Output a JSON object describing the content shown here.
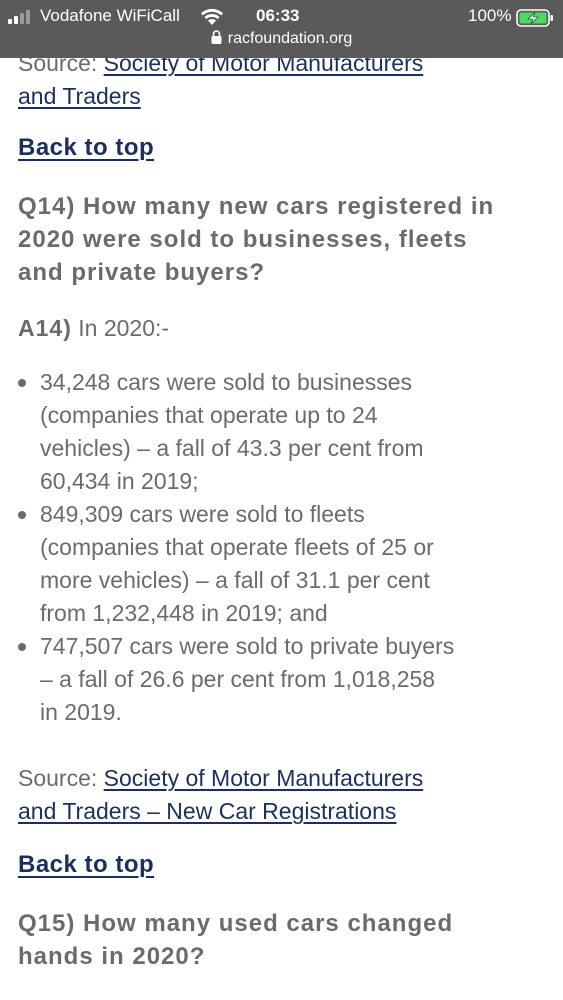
{
  "status_bar": {
    "carrier": "Vodafone WiFiCall",
    "time": "06:33",
    "battery_percent": "100%",
    "url": "racfoundation.org"
  },
  "top_source": {
    "prefix": "Source:",
    "link_line1": "Society of Motor Manufacturers",
    "link_line2": "and Traders "
  },
  "back_to_top_1": "Back to top",
  "q14": {
    "line1": "Q14) How many new cars registered in",
    "line2": "2020 were sold to businesses, fleets",
    "line3": "and private buyers?"
  },
  "a14": {
    "label": "A14)",
    "text": " In 2020:-",
    "items": [
      {
        "lines": [
          "34,248 cars were sold to businesses",
          "(companies that operate up to 24",
          "vehicles) – a fall of 43.3 per cent from",
          "60,434 in 2019;"
        ]
      },
      {
        "lines": [
          "849,309 cars were sold to fleets",
          "(companies that operate fleets of 25 or",
          "more vehicles) – a fall of 31.1 per cent",
          "from 1,232,448 in 2019; and"
        ]
      },
      {
        "lines": [
          "747,507 cars were sold to private buyers",
          "– a fall of 26.6 per cent from 1,018,258",
          "in 2019."
        ]
      }
    ]
  },
  "bottom_source": {
    "prefix": "Source: ",
    "link_line1": "Society of Motor Manufacturers",
    "link_line2": "and Traders – New Car Registrations"
  },
  "back_to_top_2": "Back to top",
  "q15": {
    "line1": "Q15) How many used cars changed",
    "line2": "hands in 2020?"
  },
  "colors": {
    "link": "#1b2f5e",
    "body_text": "#6b6b6b",
    "status_bar": "#5a5a5a",
    "battery_charging": "#4cd964"
  }
}
